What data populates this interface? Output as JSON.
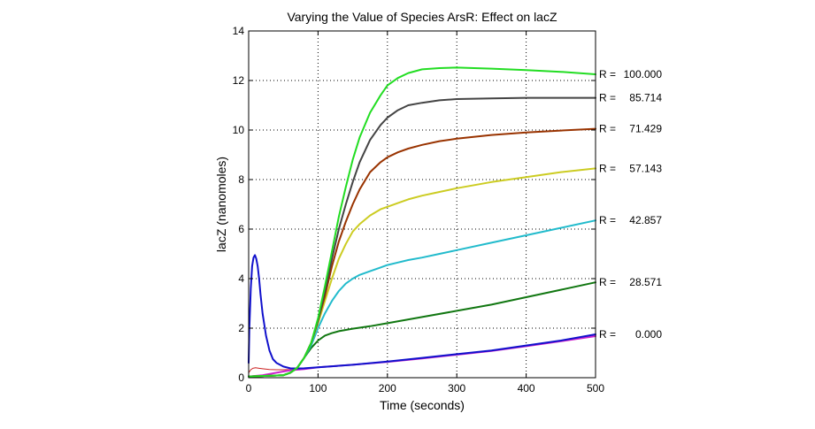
{
  "chart_data": {
    "type": "line",
    "title": "Varying the Value of Species ArsR: Effect on lacZ",
    "xlabel": "Time (seconds)",
    "ylabel": "lacZ (nanomoles)",
    "xlim": [
      0,
      500
    ],
    "ylim": [
      0,
      14
    ],
    "xticks": [
      0,
      100,
      200,
      300,
      400,
      500
    ],
    "yticks": [
      0,
      2,
      4,
      6,
      8,
      10,
      12,
      14
    ],
    "grid": true,
    "series": [
      {
        "name": "R = 100.000",
        "prefix": "R =",
        "value": "100.000",
        "color": "#22dd22",
        "x": [
          0,
          50,
          60,
          70,
          80,
          90,
          100,
          110,
          120,
          130,
          140,
          150,
          160,
          175,
          190,
          200,
          215,
          230,
          250,
          275,
          300,
          325,
          350,
          400,
          450,
          500
        ],
        "y": [
          0.05,
          0.1,
          0.2,
          0.4,
          0.8,
          1.4,
          2.4,
          3.7,
          5.1,
          6.5,
          7.7,
          8.8,
          9.7,
          10.7,
          11.4,
          11.8,
          12.1,
          12.3,
          12.45,
          12.5,
          12.52,
          12.5,
          12.48,
          12.42,
          12.35,
          12.25
        ]
      },
      {
        "name": "R = 85.714",
        "prefix": "R =",
        "value": "85.714",
        "color": "#444444",
        "x": [
          0,
          50,
          60,
          70,
          80,
          90,
          100,
          110,
          120,
          130,
          140,
          150,
          160,
          175,
          190,
          200,
          215,
          230,
          250,
          275,
          300,
          350,
          400,
          450,
          500
        ],
        "y": [
          0.05,
          0.1,
          0.2,
          0.4,
          0.8,
          1.4,
          2.3,
          3.5,
          4.8,
          6.0,
          7.0,
          7.9,
          8.7,
          9.6,
          10.2,
          10.5,
          10.8,
          11.0,
          11.1,
          11.2,
          11.25,
          11.28,
          11.3,
          11.3,
          11.3
        ]
      },
      {
        "name": "R = 71.429",
        "prefix": "R =",
        "value": "71.429",
        "color": "#993300",
        "x": [
          0,
          50,
          60,
          70,
          80,
          90,
          100,
          110,
          120,
          130,
          140,
          150,
          160,
          175,
          190,
          200,
          215,
          230,
          250,
          275,
          300,
          350,
          400,
          450,
          500
        ],
        "y": [
          0.05,
          0.1,
          0.2,
          0.4,
          0.8,
          1.4,
          2.3,
          3.3,
          4.5,
          5.5,
          6.3,
          7.0,
          7.6,
          8.3,
          8.7,
          8.9,
          9.1,
          9.25,
          9.4,
          9.55,
          9.65,
          9.8,
          9.9,
          9.98,
          10.05
        ]
      },
      {
        "name": "R = 57.143",
        "prefix": "R =",
        "value": "57.143",
        "color": "#cccc22",
        "x": [
          0,
          50,
          60,
          70,
          80,
          90,
          100,
          110,
          120,
          130,
          140,
          150,
          160,
          175,
          190,
          200,
          215,
          230,
          250,
          275,
          300,
          350,
          400,
          450,
          500
        ],
        "y": [
          0.05,
          0.1,
          0.2,
          0.4,
          0.8,
          1.4,
          2.2,
          3.1,
          4.0,
          4.8,
          5.4,
          5.9,
          6.2,
          6.55,
          6.8,
          6.9,
          7.05,
          7.2,
          7.35,
          7.5,
          7.65,
          7.9,
          8.1,
          8.3,
          8.45
        ]
      },
      {
        "name": "R = 42.857",
        "prefix": "R =",
        "value": "42.857",
        "color": "#22bbcc",
        "x": [
          0,
          50,
          60,
          70,
          80,
          90,
          100,
          110,
          120,
          130,
          140,
          150,
          160,
          175,
          190,
          200,
          215,
          230,
          250,
          275,
          300,
          350,
          400,
          450,
          500
        ],
        "y": [
          0.05,
          0.1,
          0.2,
          0.4,
          0.8,
          1.3,
          2.0,
          2.6,
          3.1,
          3.5,
          3.8,
          4.0,
          4.15,
          4.3,
          4.45,
          4.55,
          4.65,
          4.75,
          4.85,
          5.0,
          5.15,
          5.45,
          5.75,
          6.05,
          6.35
        ]
      },
      {
        "name": "R = 28.571",
        "prefix": "R =",
        "value": "28.571",
        "color": "#117711",
        "x": [
          0,
          50,
          60,
          70,
          80,
          90,
          100,
          110,
          120,
          130,
          140,
          150,
          175,
          200,
          250,
          300,
          350,
          400,
          450,
          500
        ],
        "y": [
          0.05,
          0.1,
          0.2,
          0.4,
          0.8,
          1.2,
          1.5,
          1.7,
          1.8,
          1.88,
          1.93,
          1.98,
          2.08,
          2.2,
          2.45,
          2.7,
          2.95,
          3.25,
          3.55,
          3.85
        ]
      },
      {
        "name": "R = 0.000",
        "prefix": "R =",
        "value": "0.000",
        "color": "#1111cc",
        "x": [
          0,
          1,
          3,
          5,
          7,
          9,
          11,
          13,
          15,
          17,
          20,
          25,
          30,
          35,
          40,
          50,
          60,
          70,
          80,
          100,
          150,
          200,
          250,
          300,
          350,
          400,
          450,
          500
        ],
        "y": [
          0.6,
          2.0,
          3.6,
          4.5,
          4.85,
          4.95,
          4.8,
          4.5,
          4.0,
          3.4,
          2.6,
          1.7,
          1.1,
          0.75,
          0.6,
          0.45,
          0.38,
          0.37,
          0.38,
          0.42,
          0.52,
          0.65,
          0.8,
          0.95,
          1.1,
          1.3,
          1.5,
          1.75
        ]
      },
      {
        "name": "magenta",
        "prefix": "",
        "value": "",
        "color": "#cc22cc",
        "x": [
          0,
          20,
          40,
          60,
          80,
          100,
          150,
          200,
          250,
          300,
          350,
          400,
          450,
          500
        ],
        "y": [
          0.05,
          0.1,
          0.2,
          0.3,
          0.35,
          0.42,
          0.52,
          0.64,
          0.78,
          0.93,
          1.08,
          1.27,
          1.47,
          1.68
        ]
      },
      {
        "name": "red",
        "prefix": "",
        "value": "",
        "color": "#cc2222",
        "x": [
          0,
          3,
          6,
          10,
          15,
          20,
          30,
          40,
          50,
          60,
          70
        ],
        "y": [
          0.2,
          0.32,
          0.38,
          0.4,
          0.38,
          0.36,
          0.33,
          0.32,
          0.32,
          0.33,
          0.35
        ]
      }
    ]
  }
}
